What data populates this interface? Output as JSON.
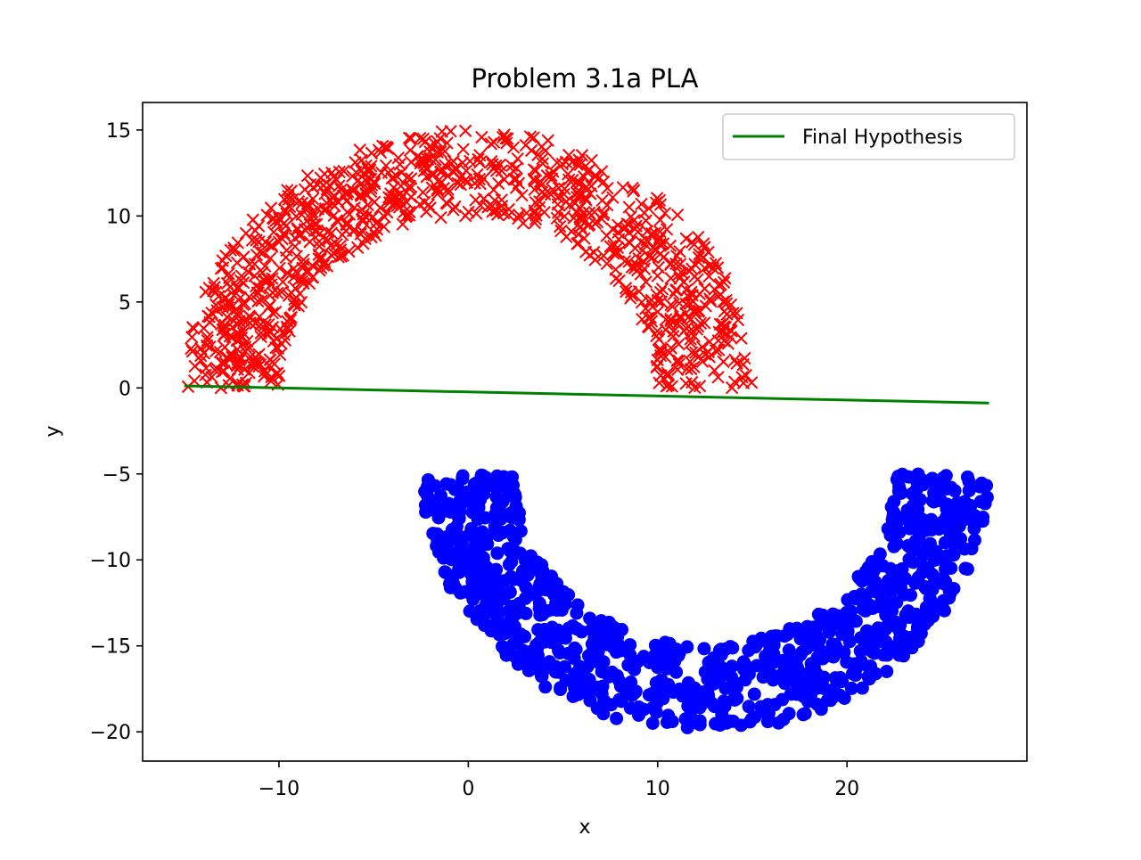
{
  "chart_data": {
    "type": "scatter",
    "title": "Problem 3.1a PLA",
    "xlabel": "x",
    "ylabel": "y",
    "xlim": [
      -17.2,
      29.5
    ],
    "ylim": [
      -21.7,
      16.6
    ],
    "x_ticks": [
      -10,
      0,
      10,
      20
    ],
    "x_tick_labels": [
      "−10",
      "0",
      "10",
      "20"
    ],
    "y_ticks": [
      15,
      10,
      5,
      0,
      -5,
      -10,
      -15,
      -20
    ],
    "y_tick_labels": [
      "15",
      "10",
      "5",
      "0",
      "−5",
      "−10",
      "−15",
      "−20"
    ],
    "grid": false,
    "legend": {
      "placement": "top-right",
      "entries": [
        "Final Hypothesis"
      ]
    },
    "series": [
      {
        "kind": "scatter",
        "marker": "x",
        "color": "#ff0000",
        "shape": "upper half-ring",
        "center": [
          0,
          0
        ],
        "radius_range": [
          10,
          15
        ],
        "angle_range_deg": [
          0,
          180
        ],
        "approx_count": 1000
      },
      {
        "kind": "scatter",
        "marker": "o",
        "color": "#0000ff",
        "shape": "lower half-ring",
        "center": [
          12.5,
          -5
        ],
        "radius_range": [
          10,
          15
        ],
        "angle_range_deg": [
          180,
          360
        ],
        "approx_count": 1000
      },
      {
        "kind": "line",
        "name": "Final Hypothesis",
        "color": "#008000",
        "x": [
          -15.0,
          27.5
        ],
        "y": [
          0.12,
          -0.88
        ]
      }
    ]
  }
}
